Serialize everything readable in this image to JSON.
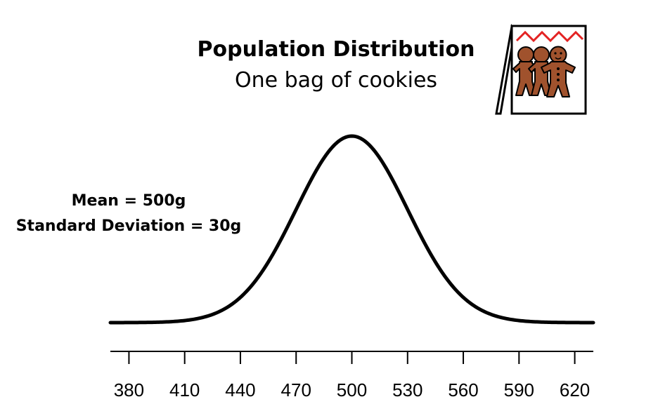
{
  "chart_data": {
    "type": "line",
    "title": "Population Distribution",
    "subtitle": "One bag of cookies",
    "annotations": [
      "Mean = 500g",
      "Standard Deviation = 30g"
    ],
    "distribution": "normal",
    "mean": 500,
    "sd": 30,
    "xlim": [
      370,
      630
    ],
    "x_ticks": [
      380,
      410,
      440,
      470,
      500,
      530,
      560,
      590,
      620
    ],
    "xlabel": "",
    "ylabel": "",
    "grid": false,
    "legend": "none"
  },
  "icon": {
    "name": "gingerbread-cookie-bag-icon"
  },
  "colors": {
    "curve": "#000000",
    "cookie": "#a0522d",
    "bag_zigzag": "#e32222"
  }
}
